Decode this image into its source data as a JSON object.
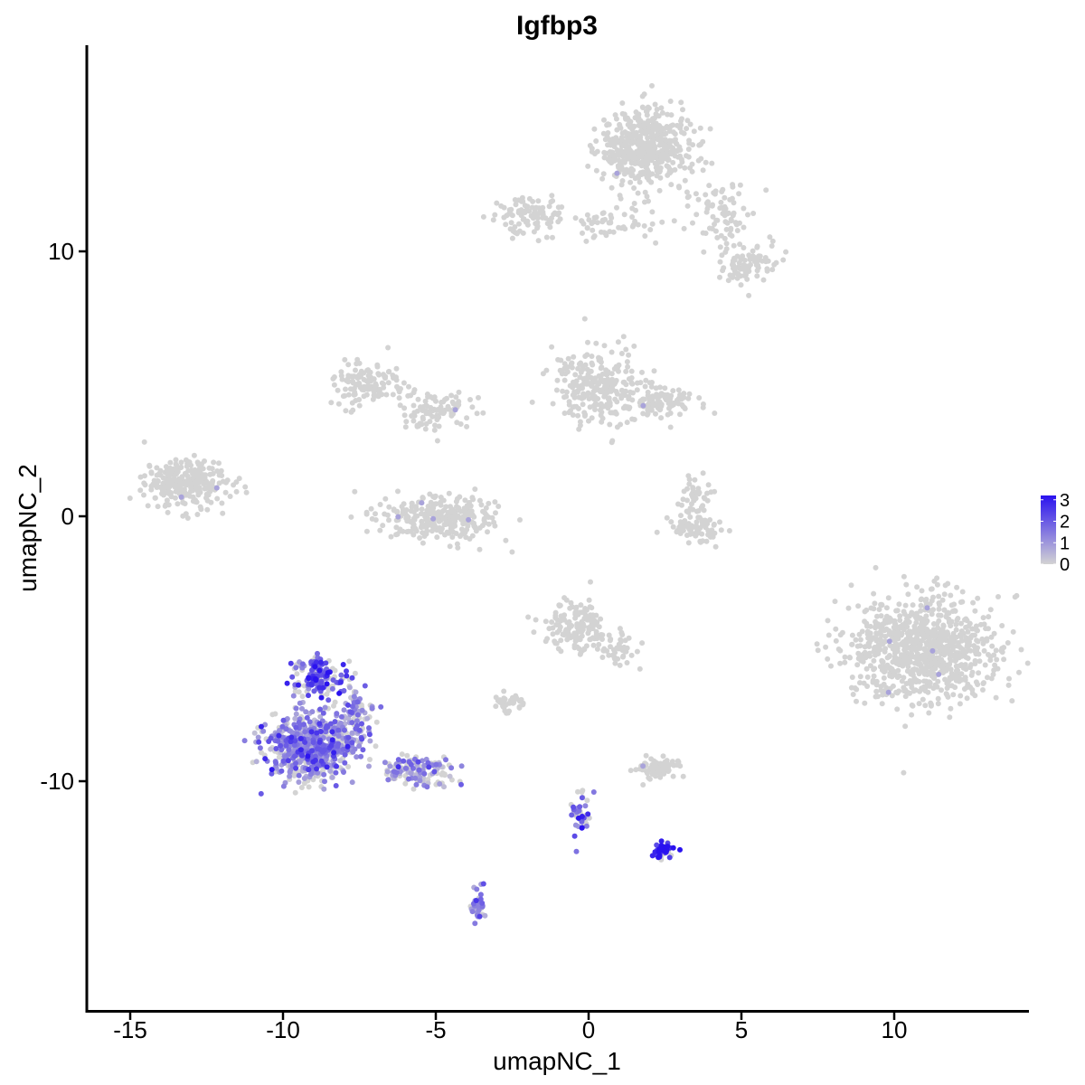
{
  "chart_data": {
    "type": "scatter",
    "title": "Igfbp3",
    "xlabel": "umapNC_1",
    "ylabel": "umapNC_2",
    "xlim": [
      -16.5,
      14.5
    ],
    "ylim": [
      -18.5,
      17.5
    ],
    "x_ticks": [
      -15,
      -10,
      -5,
      0,
      5,
      10
    ],
    "y_ticks": [
      -10,
      0,
      10
    ],
    "legend": {
      "position": "right",
      "min": 0,
      "max": 3.2,
      "ticks": [
        0,
        1,
        2,
        3
      ]
    },
    "colors": {
      "low": "#d3d3d3",
      "high": "#2a12ef"
    },
    "clusters": [
      {
        "cx": 1.8,
        "cy": 13.9,
        "sx": 1.0,
        "sy": 1.0,
        "n": 500,
        "expr": 0.0
      },
      {
        "cx": -2.0,
        "cy": 11.4,
        "sx": 0.8,
        "sy": 0.45,
        "n": 90,
        "expr": 0.0
      },
      {
        "cx": 0.5,
        "cy": 11.0,
        "sx": 1.2,
        "sy": 0.45,
        "n": 60,
        "expr": 0.0
      },
      {
        "cx": 4.3,
        "cy": 11.5,
        "sx": 0.8,
        "sy": 0.8,
        "n": 80,
        "expr": 0.0
      },
      {
        "cx": 5.2,
        "cy": 9.6,
        "sx": 0.7,
        "sy": 0.5,
        "n": 90,
        "expr": 0.0
      },
      {
        "cx": -13.2,
        "cy": 1.2,
        "sx": 0.9,
        "sy": 0.6,
        "n": 260,
        "expr": 0.0
      },
      {
        "cx": -7.3,
        "cy": 5.0,
        "sx": 0.7,
        "sy": 0.55,
        "n": 120,
        "expr": 0.0
      },
      {
        "cx": -5.0,
        "cy": 4.0,
        "sx": 0.8,
        "sy": 0.5,
        "n": 100,
        "expr": 0.0
      },
      {
        "cx": 0.3,
        "cy": 4.9,
        "sx": 1.0,
        "sy": 0.9,
        "n": 260,
        "expr": 0.0
      },
      {
        "cx": 2.4,
        "cy": 4.3,
        "sx": 0.8,
        "sy": 0.4,
        "n": 100,
        "expr": 0.0
      },
      {
        "cx": -5.0,
        "cy": -0.1,
        "sx": 1.3,
        "sy": 0.55,
        "n": 280,
        "expr": 0.0
      },
      {
        "cx": 3.5,
        "cy": -0.5,
        "sx": 0.6,
        "sy": 0.35,
        "n": 80,
        "expr": 0.0
      },
      {
        "cx": 3.5,
        "cy": 0.8,
        "sx": 0.3,
        "sy": 0.5,
        "n": 40,
        "expr": 0.0
      },
      {
        "cx": 11.0,
        "cy": -5.0,
        "sx": 1.6,
        "sy": 1.3,
        "n": 900,
        "expr": 0.0
      },
      {
        "cx": -0.4,
        "cy": -4.2,
        "sx": 0.7,
        "sy": 0.6,
        "n": 160,
        "expr": 0.0
      },
      {
        "cx": 1.0,
        "cy": -5.0,
        "sx": 0.4,
        "sy": 0.4,
        "n": 40,
        "expr": 0.0
      },
      {
        "cx": -2.6,
        "cy": -7.0,
        "sx": 0.35,
        "sy": 0.25,
        "n": 45,
        "expr": 0.0
      },
      {
        "cx": 2.2,
        "cy": -9.5,
        "sx": 0.5,
        "sy": 0.25,
        "n": 75,
        "expr": 0.0
      },
      {
        "cx": -8.8,
        "cy": -6.0,
        "sx": 0.55,
        "sy": 0.5,
        "n": 150,
        "expr": 2.0
      },
      {
        "cx": -9.1,
        "cy": -8.7,
        "sx": 0.95,
        "sy": 0.85,
        "n": 650,
        "expr": 1.2
      },
      {
        "cx": -7.6,
        "cy": -7.6,
        "sx": 0.4,
        "sy": 0.9,
        "n": 100,
        "expr": 1.0
      },
      {
        "cx": -5.6,
        "cy": -9.6,
        "sx": 0.8,
        "sy": 0.35,
        "n": 130,
        "expr": 1.0
      },
      {
        "cx": -3.6,
        "cy": -14.7,
        "sx": 0.15,
        "sy": 0.5,
        "n": 45,
        "expr": 1.2
      },
      {
        "cx": -0.3,
        "cy": -11.3,
        "sx": 0.25,
        "sy": 0.6,
        "n": 45,
        "expr": 1.5
      },
      {
        "cx": 2.4,
        "cy": -12.6,
        "sx": 0.25,
        "sy": 0.2,
        "n": 50,
        "expr": 3.0
      }
    ]
  }
}
